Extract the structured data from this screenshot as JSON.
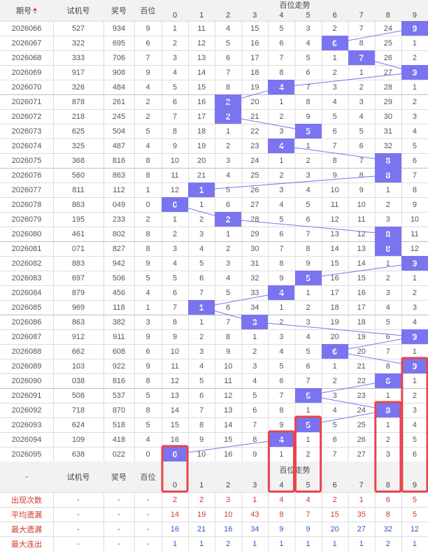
{
  "header": {
    "issue": "期号",
    "test": "试机号",
    "prize": "奖号",
    "hundreds": "百位",
    "trend_title": "百位走势",
    "digits": [
      "0",
      "1",
      "2",
      "3",
      "4",
      "5",
      "6",
      "7",
      "8",
      "9"
    ]
  },
  "rows": [
    {
      "issue": "2026066",
      "test": "527",
      "prize": "934",
      "h": "9",
      "cells": [
        "1",
        "11",
        "4",
        "15",
        "5",
        "3",
        "2",
        "7",
        "24",
        "9"
      ],
      "hit": 9
    },
    {
      "issue": "2026067",
      "test": "322",
      "prize": "695",
      "h": "6",
      "cells": [
        "2",
        "12",
        "5",
        "16",
        "6",
        "4",
        "6",
        "8",
        "25",
        "1"
      ],
      "hit": 6
    },
    {
      "issue": "2026068",
      "test": "333",
      "prize": "706",
      "h": "7",
      "cells": [
        "3",
        "13",
        "6",
        "17",
        "7",
        "5",
        "1",
        "7",
        "26",
        "2"
      ],
      "hit": 7
    },
    {
      "issue": "2026069",
      "test": "917",
      "prize": "908",
      "h": "9",
      "cells": [
        "4",
        "14",
        "7",
        "18",
        "8",
        "6",
        "2",
        "1",
        "27",
        "9"
      ],
      "hit": 9
    },
    {
      "issue": "2026070",
      "test": "326",
      "prize": "484",
      "h": "4",
      "cells": [
        "5",
        "15",
        "8",
        "19",
        "4",
        "7",
        "3",
        "2",
        "28",
        "1"
      ],
      "hit": 4
    },
    {
      "issue": "2026071",
      "test": "878",
      "prize": "261",
      "h": "2",
      "cells": [
        "6",
        "16",
        "2",
        "20",
        "1",
        "8",
        "4",
        "3",
        "29",
        "2"
      ],
      "hit": 2
    },
    {
      "issue": "2026072",
      "test": "218",
      "prize": "245",
      "h": "2",
      "cells": [
        "7",
        "17",
        "2",
        "21",
        "2",
        "9",
        "5",
        "4",
        "30",
        "3"
      ],
      "hit": 2
    },
    {
      "issue": "2026073",
      "test": "625",
      "prize": "504",
      "h": "5",
      "cells": [
        "8",
        "18",
        "1",
        "22",
        "3",
        "5",
        "6",
        "5",
        "31",
        "4"
      ],
      "hit": 5
    },
    {
      "issue": "2026074",
      "test": "325",
      "prize": "487",
      "h": "4",
      "cells": [
        "9",
        "19",
        "2",
        "23",
        "4",
        "1",
        "7",
        "6",
        "32",
        "5"
      ],
      "hit": 4
    },
    {
      "issue": "2026075",
      "test": "368",
      "prize": "816",
      "h": "8",
      "cells": [
        "10",
        "20",
        "3",
        "24",
        "1",
        "2",
        "8",
        "7",
        "8",
        "6"
      ],
      "hit": 8
    },
    {
      "issue": "2026076",
      "test": "560",
      "prize": "863",
      "h": "8",
      "cells": [
        "11",
        "21",
        "4",
        "25",
        "2",
        "3",
        "9",
        "8",
        "8",
        "7"
      ],
      "hit": 8
    },
    {
      "issue": "2026077",
      "test": "811",
      "prize": "112",
      "h": "1",
      "cells": [
        "12",
        "1",
        "5",
        "26",
        "3",
        "4",
        "10",
        "9",
        "1",
        "8"
      ],
      "hit": 1
    },
    {
      "issue": "2026078",
      "test": "863",
      "prize": "049",
      "h": "0",
      "cells": [
        "0",
        "1",
        "6",
        "27",
        "4",
        "5",
        "11",
        "10",
        "2",
        "9"
      ],
      "hit": 0
    },
    {
      "issue": "2026079",
      "test": "195",
      "prize": "233",
      "h": "2",
      "cells": [
        "1",
        "2",
        "2",
        "28",
        "5",
        "6",
        "12",
        "11",
        "3",
        "10"
      ],
      "hit": 2
    },
    {
      "issue": "2026080",
      "test": "461",
      "prize": "802",
      "h": "8",
      "cells": [
        "2",
        "3",
        "1",
        "29",
        "6",
        "7",
        "13",
        "12",
        "8",
        "11"
      ],
      "hit": 8
    },
    {
      "issue": "2026081",
      "test": "071",
      "prize": "827",
      "h": "8",
      "cells": [
        "3",
        "4",
        "2",
        "30",
        "7",
        "8",
        "14",
        "13",
        "8",
        "12"
      ],
      "hit": 8
    },
    {
      "issue": "2026082",
      "test": "883",
      "prize": "942",
      "h": "9",
      "cells": [
        "4",
        "5",
        "3",
        "31",
        "8",
        "9",
        "15",
        "14",
        "1",
        "9"
      ],
      "hit": 9
    },
    {
      "issue": "2026083",
      "test": "697",
      "prize": "506",
      "h": "5",
      "cells": [
        "5",
        "6",
        "4",
        "32",
        "9",
        "5",
        "16",
        "15",
        "2",
        "1"
      ],
      "hit": 5
    },
    {
      "issue": "2026084",
      "test": "879",
      "prize": "456",
      "h": "4",
      "cells": [
        "6",
        "7",
        "5",
        "33",
        "4",
        "1",
        "17",
        "16",
        "3",
        "2"
      ],
      "hit": 4
    },
    {
      "issue": "2026085",
      "test": "969",
      "prize": "118",
      "h": "1",
      "cells": [
        "7",
        "1",
        "6",
        "34",
        "1",
        "2",
        "18",
        "17",
        "4",
        "3"
      ],
      "hit": 1
    },
    {
      "issue": "2026086",
      "test": "863",
      "prize": "382",
      "h": "3",
      "cells": [
        "8",
        "1",
        "7",
        "3",
        "2",
        "3",
        "19",
        "18",
        "5",
        "4"
      ],
      "hit": 3
    },
    {
      "issue": "2026087",
      "test": "912",
      "prize": "911",
      "h": "9",
      "cells": [
        "9",
        "2",
        "8",
        "1",
        "3",
        "4",
        "20",
        "19",
        "6",
        "9"
      ],
      "hit": 9
    },
    {
      "issue": "2026088",
      "test": "662",
      "prize": "608",
      "h": "6",
      "cells": [
        "10",
        "3",
        "9",
        "2",
        "4",
        "5",
        "6",
        "20",
        "7",
        "1"
      ],
      "hit": 6
    },
    {
      "issue": "2026089",
      "test": "103",
      "prize": "922",
      "h": "9",
      "cells": [
        "11",
        "4",
        "10",
        "3",
        "5",
        "6",
        "1",
        "21",
        "8",
        "9"
      ],
      "hit": 9
    },
    {
      "issue": "2026090",
      "test": "038",
      "prize": "816",
      "h": "8",
      "cells": [
        "12",
        "5",
        "11",
        "4",
        "6",
        "7",
        "2",
        "22",
        "8",
        "1"
      ],
      "hit": 8
    },
    {
      "issue": "2026091",
      "test": "508",
      "prize": "537",
      "h": "5",
      "cells": [
        "13",
        "6",
        "12",
        "5",
        "7",
        "5",
        "3",
        "23",
        "1",
        "2"
      ],
      "hit": 5
    },
    {
      "issue": "2026092",
      "test": "718",
      "prize": "870",
      "h": "8",
      "cells": [
        "14",
        "7",
        "13",
        "6",
        "8",
        "1",
        "4",
        "24",
        "8",
        "3"
      ],
      "hit": 8
    },
    {
      "issue": "2026093",
      "test": "624",
      "prize": "518",
      "h": "5",
      "cells": [
        "15",
        "8",
        "14",
        "7",
        "9",
        "5",
        "5",
        "25",
        "1",
        "4"
      ],
      "hit": 5
    },
    {
      "issue": "2026094",
      "test": "109",
      "prize": "418",
      "h": "4",
      "cells": [
        "16",
        "9",
        "15",
        "8",
        "4",
        "1",
        "6",
        "26",
        "2",
        "5"
      ],
      "hit": 4
    },
    {
      "issue": "2026095",
      "test": "638",
      "prize": "022",
      "h": "0",
      "cells": [
        "0",
        "10",
        "16",
        "9",
        "1",
        "2",
        "7",
        "27",
        "3",
        "6"
      ],
      "hit": 0
    }
  ],
  "footer_header": {
    "issue": "-",
    "test": "试机号",
    "prize": "奖号",
    "hundreds": "百位",
    "trend_title": "百位走势"
  },
  "stats": [
    {
      "label": "出现次数",
      "dash1": "-",
      "dash2": "-",
      "dash3": "-",
      "values": [
        "2",
        "2",
        "3",
        "1",
        "4",
        "4",
        "2",
        "1",
        "6",
        "5"
      ],
      "color": "red"
    },
    {
      "label": "平均遗漏",
      "dash1": "-",
      "dash2": "-",
      "dash3": "-",
      "values": [
        "14",
        "19",
        "10",
        "43",
        "8",
        "7",
        "15",
        "35",
        "8",
        "5"
      ],
      "color": "red"
    },
    {
      "label": "最大遗漏",
      "dash1": "-",
      "dash2": "-",
      "dash3": "-",
      "values": [
        "16",
        "21",
        "16",
        "34",
        "9",
        "9",
        "20",
        "27",
        "32",
        "12"
      ],
      "color": "blue"
    },
    {
      "label": "最大连出",
      "dash1": "-",
      "dash2": "-",
      "dash3": "-",
      "values": [
        "1",
        "1",
        "2",
        "1",
        "1",
        "1",
        "1",
        "1",
        "2",
        "1"
      ],
      "color": "blue"
    }
  ],
  "colors": {
    "hit_bg": "#7b74f0",
    "line": "#7b74f0",
    "highlight_box": "#e8454b",
    "header_bg": "#f2f2f2",
    "grid": "#dddddd",
    "red_text": "#d23b2e",
    "blue_text": "#3357c4"
  },
  "icons": {
    "sort": "sort-icon"
  },
  "highlight_columns": [
    "0",
    "4",
    "5",
    "8",
    "9"
  ]
}
